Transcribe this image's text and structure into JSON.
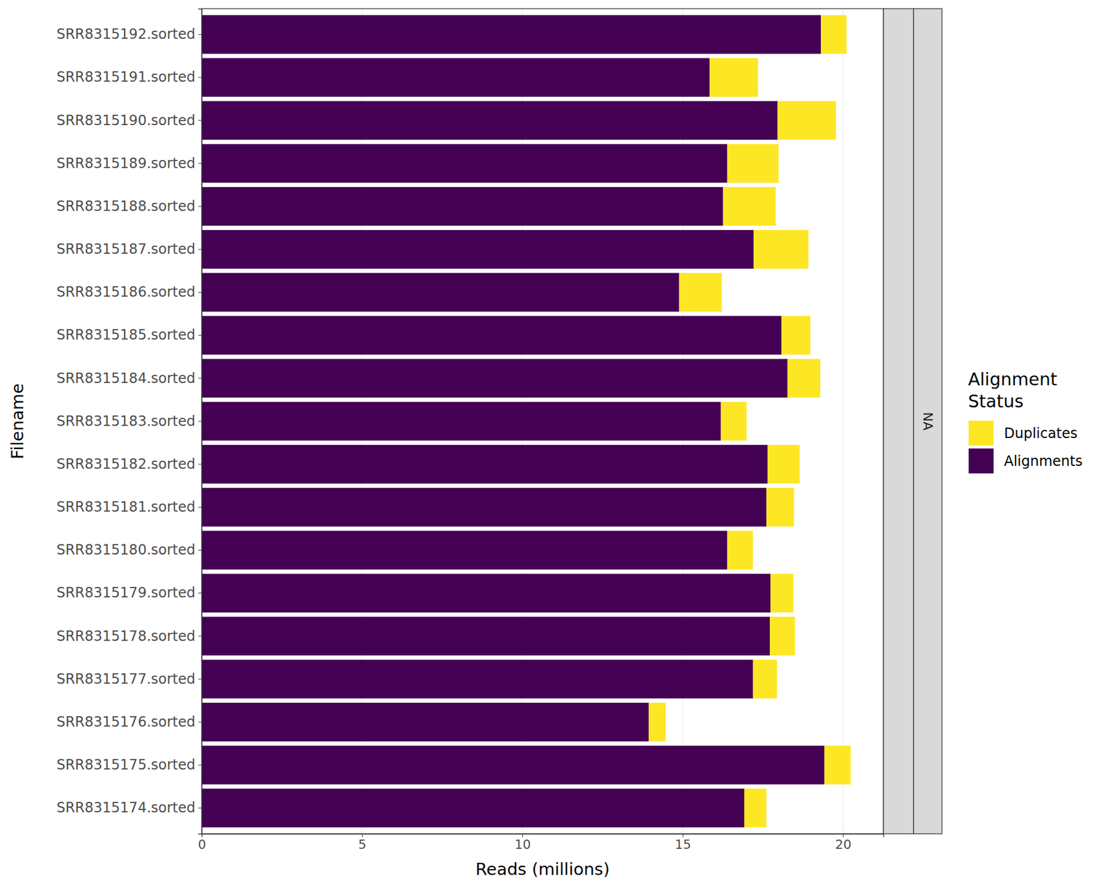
{
  "chart_data": {
    "type": "bar",
    "orientation": "horizontal",
    "stacked": true,
    "grid": true,
    "x_label": "Reads (millions)",
    "y_label": "Filename",
    "legend_title": "Alignment\nStatus",
    "legend": "right",
    "facet_label": "NA",
    "categories": [
      "SRR8315192.sorted",
      "SRR8315191.sorted",
      "SRR8315190.sorted",
      "SRR8315189.sorted",
      "SRR8315188.sorted",
      "SRR8315187.sorted",
      "SRR8315186.sorted",
      "SRR8315185.sorted",
      "SRR8315184.sorted",
      "SRR8315183.sorted",
      "SRR8315182.sorted",
      "SRR8315181.sorted",
      "SRR8315180.sorted",
      "SRR8315179.sorted",
      "SRR8315178.sorted",
      "SRR8315177.sorted",
      "SRR8315176.sorted",
      "SRR8315175.sorted",
      "SRR8315174.sorted"
    ],
    "series": [
      {
        "name": "Alignments",
        "color": "#440154",
        "values": [
          19.31,
          15.84,
          17.96,
          16.39,
          16.26,
          17.21,
          14.89,
          18.08,
          18.27,
          16.19,
          17.65,
          17.61,
          16.39,
          17.74,
          17.72,
          17.19,
          13.94,
          19.42,
          16.92
        ]
      },
      {
        "name": "Duplicates",
        "color": "#FDE725",
        "values": [
          0.8,
          1.51,
          1.82,
          1.6,
          1.64,
          1.71,
          1.33,
          0.9,
          1.02,
          0.8,
          1.0,
          0.86,
          0.8,
          0.71,
          0.78,
          0.75,
          0.53,
          0.82,
          0.69
        ]
      }
    ],
    "xlim": [
      0,
      21.26
    ],
    "xticks": [
      0,
      5,
      10,
      15,
      20
    ]
  }
}
